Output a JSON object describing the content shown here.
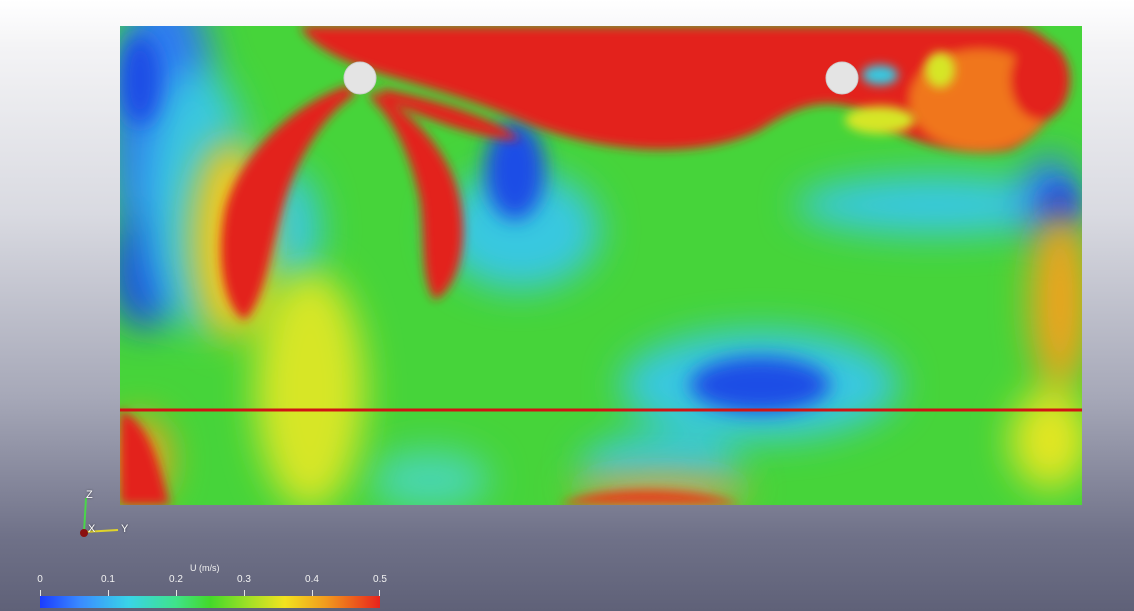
{
  "legend": {
    "title": "U (m/s)",
    "ticks": [
      "0",
      "0.1",
      "0.2",
      "0.3",
      "0.4",
      "0.5"
    ],
    "tick_values": [
      0,
      0.1,
      0.2,
      0.3,
      0.4,
      0.5
    ],
    "range": [
      0,
      0.5
    ],
    "colors": [
      "#1b3cff",
      "#3a8cff",
      "#39d4e8",
      "#3fe38a",
      "#43d92a",
      "#a6e025",
      "#f2e21f",
      "#f29b1d",
      "#e8231c"
    ]
  },
  "orientation_axes": {
    "z_label": "Z",
    "x_label": "X",
    "y_label": "Y"
  },
  "colors": {
    "cut_line": "#d01414",
    "cylinder": "#e4e4e4"
  }
}
